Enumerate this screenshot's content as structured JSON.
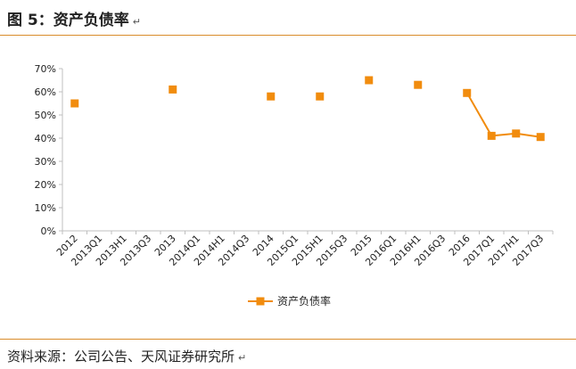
{
  "figure": {
    "title": "图 5：资产负债率",
    "title_mark": "↵",
    "source": "资料来源：公司公告、天风证券研究所",
    "source_mark": "↵"
  },
  "colors": {
    "series": "#f18c0e",
    "rule": "#d98c2b",
    "axis": "#bfbfbf"
  },
  "chart_data": {
    "type": "line",
    "title": "",
    "xlabel": "",
    "ylabel": "",
    "categories": [
      "2012",
      "2013Q1",
      "2013H1",
      "2013Q3",
      "2013",
      "2014Q1",
      "2014H1",
      "2014Q3",
      "2014",
      "2015Q1",
      "2015H1",
      "2015Q3",
      "2015",
      "2016Q1",
      "2016H1",
      "2016Q3",
      "2016",
      "2017Q1",
      "2017H1",
      "2017Q3"
    ],
    "series": [
      {
        "name": "资产负债率",
        "values": [
          0.55,
          null,
          null,
          null,
          0.61,
          null,
          null,
          null,
          0.58,
          null,
          0.58,
          null,
          0.65,
          null,
          0.63,
          null,
          0.595,
          0.41,
          0.42,
          0.405
        ]
      }
    ],
    "ylim": [
      0,
      0.7
    ],
    "yticks": [
      0,
      0.1,
      0.2,
      0.3,
      0.4,
      0.5,
      0.6,
      0.7
    ],
    "ytick_labels": [
      "0%",
      "10%",
      "20%",
      "30%",
      "40%",
      "50%",
      "60%",
      "70%"
    ],
    "grid": false,
    "legend_position": "bottom"
  }
}
